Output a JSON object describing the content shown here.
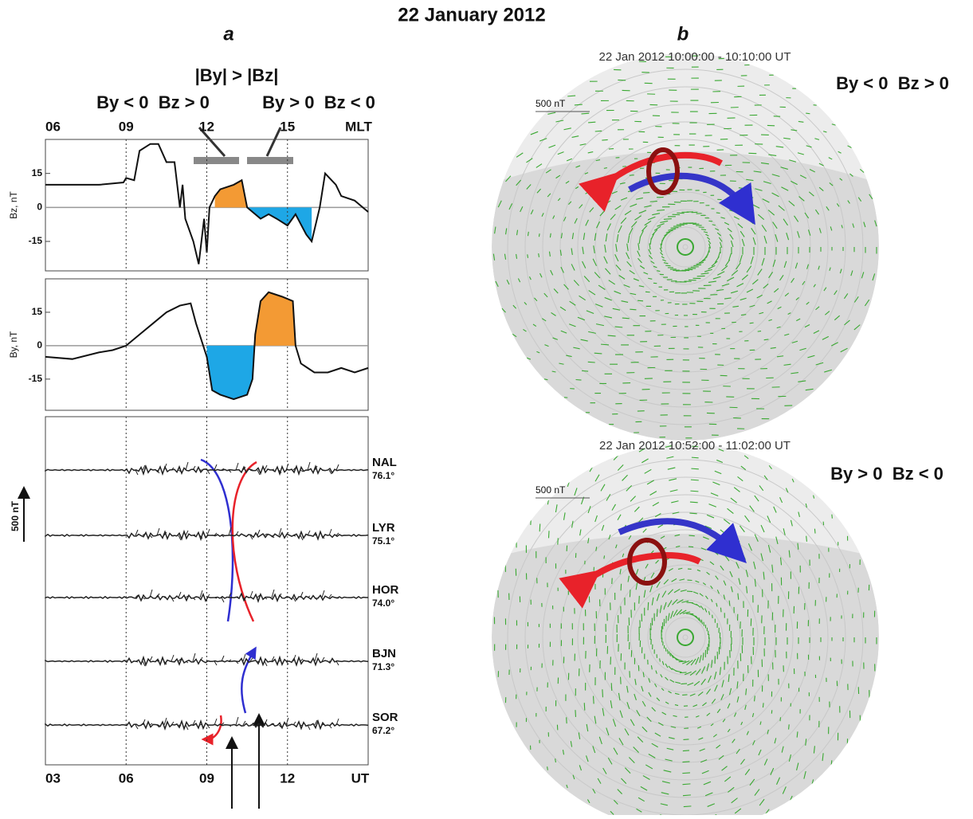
{
  "figure_title": "22 January 2012",
  "panel_a": {
    "label": "a",
    "condition_header": "|By| > |Bz|",
    "condition_left": "By < 0  Bz > 0",
    "condition_right": "By > 0  Bz < 0"
  },
  "chart_data": [
    {
      "type": "line",
      "y_label": "Bz, nT",
      "x": [
        3,
        4,
        5,
        5.9,
        6,
        6.3,
        6.5,
        6.9,
        7.2,
        7.5,
        7.8,
        8,
        8.1,
        8.2,
        8.5,
        8.7,
        8.9,
        9,
        9.1,
        9.3,
        9.5,
        10,
        10.3,
        10.5,
        11,
        11.3,
        11.6,
        12,
        12.3,
        12.7,
        12.9,
        13.2,
        13.4,
        13.8,
        14,
        14.5,
        15
      ],
      "values": [
        10,
        10,
        10,
        11,
        13,
        12,
        25,
        28,
        28,
        20,
        20,
        0,
        10,
        -5,
        -15,
        -25,
        -5,
        -20,
        0,
        5,
        8,
        10,
        12,
        0,
        -5,
        -3,
        -5,
        -8,
        -3,
        -12,
        -15,
        0,
        15,
        10,
        5,
        3,
        -2
      ],
      "color": "#111111",
      "shaded": [
        {
          "from": 9.3,
          "to": 10.5,
          "color": "#f39a34"
        },
        {
          "from": 10.5,
          "to": 12.9,
          "color": "#1ea7e6"
        }
      ],
      "xlim": [
        3,
        15
      ],
      "xticks": [
        {
          "value": 3,
          "label": "06"
        },
        {
          "value": 6,
          "label": "09"
        },
        {
          "value": 9,
          "label": "12"
        },
        {
          "value": 12,
          "label": "15"
        },
        {
          "value": 15,
          "label": "MLT"
        }
      ],
      "ylim": [
        -28,
        30
      ],
      "yticks": [
        -15,
        0,
        15
      ]
    },
    {
      "type": "line",
      "y_label": "By, nT",
      "x": [
        3,
        4,
        5,
        5.5,
        6,
        6.5,
        7,
        7.5,
        8,
        8.4,
        8.6,
        9,
        9.2,
        9.5,
        10,
        10.5,
        10.7,
        10.8,
        11,
        11.3,
        11.8,
        12.2,
        12.3,
        12.5,
        13,
        13.5,
        14,
        14.5,
        15
      ],
      "values": [
        -5,
        -6,
        -3,
        -2,
        0,
        5,
        10,
        15,
        18,
        19,
        10,
        -5,
        -20,
        -22,
        -24,
        -22,
        -15,
        5,
        20,
        24,
        22,
        20,
        0,
        -8,
        -12,
        -12,
        -10,
        -12,
        -10
      ],
      "color": "#111111",
      "shaded": [
        {
          "from": 9.0,
          "to": 10.8,
          "color": "#1ea7e6"
        },
        {
          "from": 10.8,
          "to": 12.3,
          "color": "#f39a34"
        }
      ],
      "xlim": [
        3,
        15
      ],
      "xticks": [
        {
          "value": 3,
          "label": "03"
        },
        {
          "value": 6,
          "label": "06"
        },
        {
          "value": 9,
          "label": "09"
        },
        {
          "value": 12,
          "label": "12"
        },
        {
          "value": 15,
          "label": "UT"
        }
      ],
      "ylim": [
        -29,
        30
      ],
      "yticks": [
        -15,
        0,
        15
      ]
    }
  ],
  "magnetometers": {
    "scale": "500 nT",
    "stations": [
      {
        "code": "NAL",
        "lat": "76.1°"
      },
      {
        "code": "LYR",
        "lat": "75.1°"
      },
      {
        "code": "HOR",
        "lat": "74.0°"
      },
      {
        "code": "BJN",
        "lat": "71.3°"
      },
      {
        "code": "SOR",
        "lat": "67.2°"
      }
    ]
  },
  "panel_b": {
    "label": "b",
    "maps": [
      {
        "time": "22 Jan 2012 10:00:00 - 10:10:00 UT",
        "condition": "By < 0  Bz > 0",
        "scale": "500 nT"
      },
      {
        "time": "22 Jan 2012 10:52:00 - 11:02:00 UT",
        "condition": "By > 0  Bz < 0",
        "scale": "500 nT"
      }
    ]
  }
}
